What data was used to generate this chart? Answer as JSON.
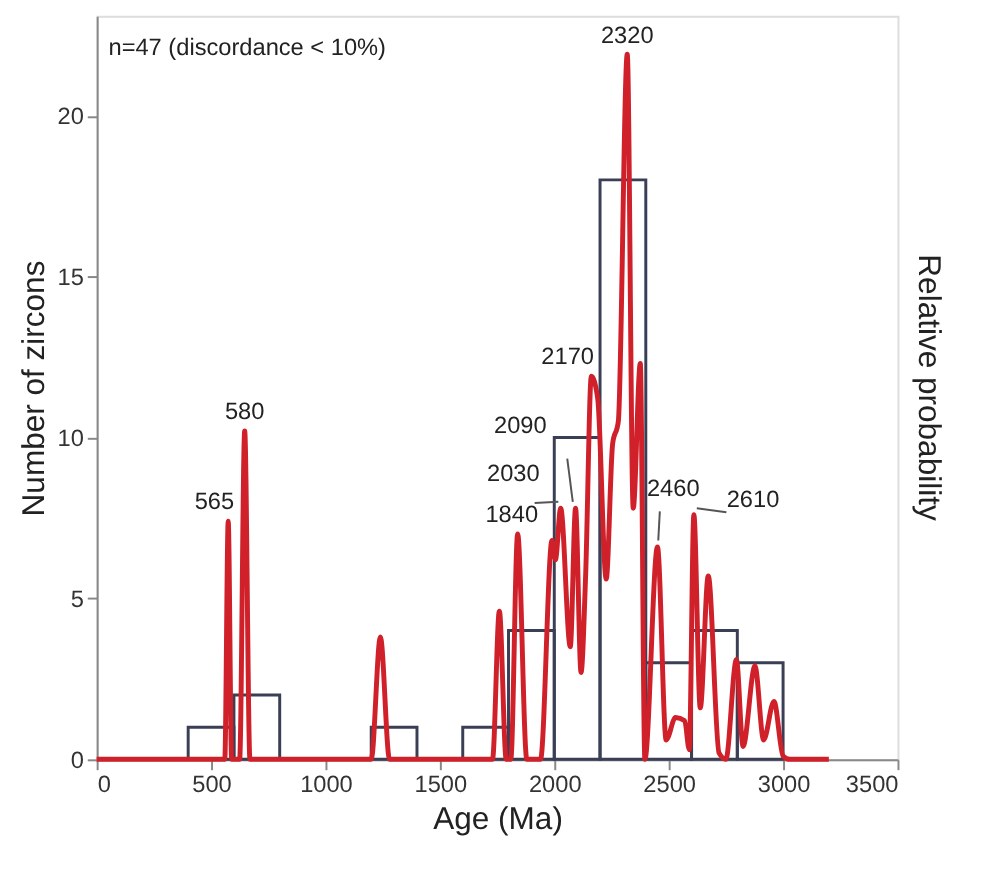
{
  "chart_data": {
    "type": "histogram",
    "xlabel": "Age (Ma)",
    "ylabel": "Number of zircons",
    "y2label": "Relative probability",
    "bins": [
      400,
      600,
      800,
      1000,
      1200,
      1400,
      1600,
      1800,
      2000,
      2200,
      2400,
      2600,
      2800,
      3000
    ],
    "values": [
      1,
      2,
      0,
      0,
      1,
      0,
      1,
      4,
      10,
      18,
      3,
      4,
      3
    ],
    "color": "#3a3f55",
    "series": [
      {
        "type": "line",
        "color": "#d0202a",
        "x": [
          0,
          540,
          560,
          575,
          590,
          625,
          647,
          670,
          1200,
          1240,
          1280,
          1730,
          1760,
          1790,
          1810,
          1840,
          1880,
          1940,
          1990,
          2005,
          2028,
          2070,
          2093,
          2117,
          2137,
          2162,
          2190,
          2227,
          2255,
          2280,
          2319,
          2345,
          2376,
          2396,
          2451,
          2489,
          2530,
          2570,
          2590,
          2610,
          2638,
          2673,
          2720,
          2750,
          2796,
          2825,
          2877,
          2915,
          2960,
          3000,
          3030,
          3200
        ],
        "values": [
          0,
          0,
          0,
          7.4,
          0,
          0,
          10.2,
          0,
          0,
          3.8,
          0,
          0,
          4.6,
          0,
          0,
          7.0,
          0,
          0,
          6.8,
          6.2,
          7.8,
          3.5,
          7.8,
          2.7,
          5.7,
          11.9,
          11.2,
          5.6,
          9.8,
          10.5,
          21.9,
          7.8,
          12.3,
          0,
          6.6,
          0.6,
          1.3,
          1.2,
          0.3,
          7.6,
          1.6,
          5.7,
          0.2,
          0,
          3.1,
          0.4,
          2.9,
          0.6,
          1.8,
          0.1,
          0,
          0
        ]
      }
    ],
    "xlim": [
      0,
      3500
    ],
    "ylim": [
      0,
      23.1
    ],
    "xticks": [
      0,
      500,
      1000,
      1500,
      2000,
      2500,
      3000,
      3500
    ],
    "yticks": [
      0,
      5,
      10,
      15,
      20
    ],
    "grid": false,
    "annotations": [
      "n=47 (discordance < 10%)",
      {
        "text": "565",
        "x": 575,
        "y": 7.4
      },
      {
        "text": "580",
        "x": 647,
        "y": 10.2
      },
      {
        "text": "1840",
        "x": 1840,
        "y": 7.0
      },
      {
        "text": "2030",
        "x": 2028,
        "y": 7.8
      },
      {
        "text": "2090",
        "x": 2093,
        "y": 7.8
      },
      {
        "text": "2170",
        "x": 2162,
        "y": 11.9
      },
      {
        "text": "2320",
        "x": 2319,
        "y": 21.9
      },
      {
        "text": "2460",
        "x": 2451,
        "y": 6.6
      },
      {
        "text": "2610",
        "x": 2610,
        "y": 7.6
      }
    ]
  }
}
